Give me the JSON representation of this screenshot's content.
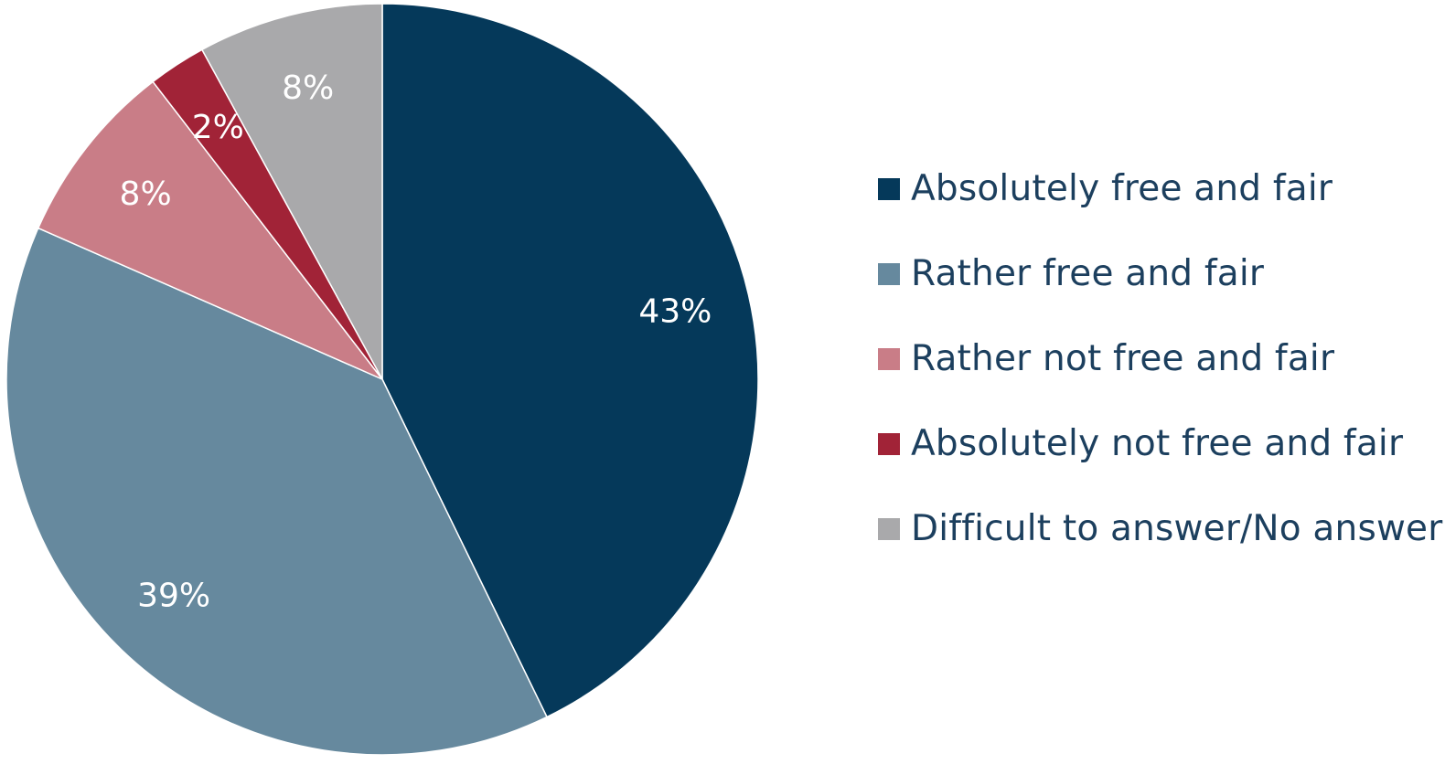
{
  "chart_data": {
    "type": "pie",
    "start_angle_deg": 0,
    "direction": "clockwise",
    "slices": [
      {
        "label": "Absolutely free and fair",
        "value": 43,
        "value_label": "43%",
        "color": "#05395a"
      },
      {
        "label": "Rather free and fair",
        "value": 39,
        "value_label": "39%",
        "color": "#66899e"
      },
      {
        "label": "Rather not free and fair",
        "value": 8,
        "value_label": "8%",
        "color": "#c97d87"
      },
      {
        "label": "Absolutely not free and fair",
        "value": 2.5,
        "value_label": "2%",
        "color": "#a12337"
      },
      {
        "label": "Difficult to answer/No answer",
        "value": 8,
        "value_label": "8%",
        "color": "#a9a9ab"
      }
    ],
    "legend_position": "right"
  }
}
